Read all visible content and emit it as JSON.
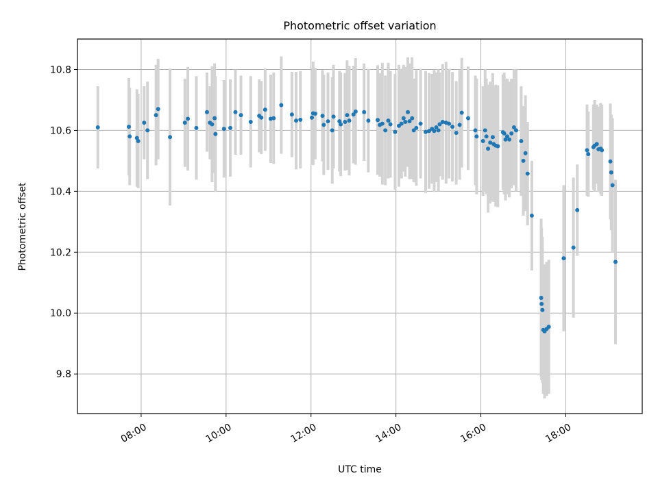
{
  "chart_data": {
    "type": "scatter",
    "title": "Photometric offset variation",
    "xlabel": "UTC time",
    "ylabel": "Photometric offset",
    "x_unit": "hours UTC",
    "xlim": [
      6.5,
      19.8
    ],
    "ylim": [
      9.67,
      10.9
    ],
    "x_ticks": [
      8,
      10,
      12,
      14,
      16,
      18
    ],
    "x_tick_labels": [
      "08:00",
      "10:00",
      "12:00",
      "14:00",
      "16:00",
      "18:00"
    ],
    "y_ticks": [
      9.8,
      10.0,
      10.2,
      10.4,
      10.6,
      10.8
    ],
    "y_tick_labels": [
      "9.8",
      "10.0",
      "10.2",
      "10.4",
      "10.6",
      "10.8"
    ],
    "grid": true,
    "colors": {
      "points": "#1f77b4",
      "errorbars": "#d3d3d3",
      "grid": "#b0b0b0"
    },
    "series": [
      {
        "x": [
          6.98,
          7.71,
          7.73,
          7.9,
          7.93,
          8.07,
          8.15,
          8.35,
          8.4,
          8.68,
          9.03,
          9.1,
          9.3,
          9.55,
          9.62,
          9.67,
          9.73,
          9.75,
          9.95,
          10.1,
          10.22,
          10.35,
          10.58,
          10.78,
          10.83,
          10.92,
          11.05,
          11.12,
          11.3,
          11.55,
          11.65,
          11.75,
          12.02,
          12.05,
          12.1,
          12.27,
          12.3,
          12.4,
          12.5,
          12.53,
          12.67,
          12.7,
          12.8,
          12.85,
          12.9,
          13.0,
          13.05,
          13.25,
          13.35,
          13.57,
          13.62,
          13.68,
          13.75,
          13.82,
          13.87,
          13.98,
          14.07,
          14.13,
          14.18,
          14.22,
          14.28,
          14.32,
          14.38,
          14.42,
          14.48,
          14.58,
          14.7,
          14.78,
          14.85,
          14.9,
          14.95,
          15.0,
          15.03,
          15.1,
          15.18,
          15.25,
          15.33,
          15.42,
          15.5,
          15.55,
          15.7,
          15.87,
          15.9,
          16.05,
          16.1,
          16.13,
          16.17,
          16.22,
          16.28,
          16.3,
          16.35,
          16.4,
          16.52,
          16.55,
          16.58,
          16.62,
          16.67,
          16.72,
          16.78,
          16.83,
          16.95,
          17.0,
          17.05,
          17.1,
          17.2,
          17.42,
          17.43,
          17.45,
          17.47,
          17.5,
          17.55,
          17.6,
          17.95,
          18.18,
          18.27,
          18.5,
          18.53,
          18.65,
          18.68,
          18.73,
          18.77,
          18.82,
          18.85,
          19.05,
          19.07,
          19.1,
          19.17
        ],
        "y": [
          10.61,
          10.612,
          10.58,
          10.575,
          10.565,
          10.625,
          10.6,
          10.65,
          10.67,
          10.578,
          10.625,
          10.638,
          10.608,
          10.66,
          10.625,
          10.62,
          10.64,
          10.588,
          10.605,
          10.608,
          10.66,
          10.65,
          10.628,
          10.648,
          10.642,
          10.668,
          10.638,
          10.64,
          10.683,
          10.652,
          10.632,
          10.635,
          10.642,
          10.656,
          10.655,
          10.648,
          10.618,
          10.63,
          10.6,
          10.645,
          10.63,
          10.62,
          10.628,
          10.65,
          10.632,
          10.652,
          10.662,
          10.66,
          10.632,
          10.634,
          10.618,
          10.622,
          10.6,
          10.632,
          10.62,
          10.595,
          10.615,
          10.622,
          10.64,
          10.628,
          10.66,
          10.63,
          10.64,
          10.6,
          10.608,
          10.622,
          10.595,
          10.598,
          10.605,
          10.598,
          10.61,
          10.6,
          10.62,
          10.628,
          10.625,
          10.622,
          10.612,
          10.592,
          10.618,
          10.658,
          10.64,
          10.6,
          10.58,
          10.565,
          10.6,
          10.58,
          10.54,
          10.56,
          10.578,
          10.555,
          10.55,
          10.548,
          10.594,
          10.59,
          10.57,
          10.58,
          10.57,
          10.59,
          10.61,
          10.6,
          10.565,
          10.5,
          10.525,
          10.458,
          10.32,
          10.05,
          10.03,
          10.01,
          9.945,
          9.94,
          9.948,
          9.955,
          10.18,
          10.215,
          10.338,
          10.535,
          10.522,
          10.545,
          10.55,
          10.555,
          10.538,
          10.54,
          10.535,
          10.498,
          10.462,
          10.42,
          10.168
        ],
        "err": [
          0.135,
          0.16,
          0.16,
          0.16,
          0.155,
          0.12,
          0.16,
          0.165,
          0.165,
          0.225,
          0.145,
          0.17,
          0.17,
          0.13,
          0.12,
          0.19,
          0.18,
          0.19,
          0.16,
          0.16,
          0.14,
          0.13,
          0.15,
          0.12,
          0.12,
          0.135,
          0.145,
          0.15,
          0.16,
          0.14,
          0.16,
          0.16,
          0.155,
          0.17,
          0.15,
          0.15,
          0.165,
          0.16,
          0.175,
          0.17,
          0.165,
          0.17,
          0.16,
          0.18,
          0.18,
          0.16,
          0.175,
          0.16,
          0.17,
          0.18,
          0.17,
          0.2,
          0.18,
          0.19,
          0.175,
          0.19,
          0.2,
          0.18,
          0.175,
          0.18,
          0.18,
          0.19,
          0.2,
          0.17,
          0.19,
          0.18,
          0.2,
          0.19,
          0.18,
          0.2,
          0.18,
          0.2,
          0.17,
          0.19,
          0.2,
          0.18,
          0.18,
          0.17,
          0.18,
          0.18,
          0.17,
          0.18,
          0.19,
          0.18,
          0.2,
          0.19,
          0.21,
          0.2,
          0.21,
          0.19,
          0.2,
          0.2,
          0.19,
          0.2,
          0.2,
          0.19,
          0.19,
          0.18,
          0.19,
          0.2,
          0.18,
          0.18,
          0.19,
          0.17,
          0.18,
          0.26,
          0.25,
          0.24,
          0.21,
          0.22,
          0.22,
          0.22,
          0.24,
          0.23,
          0.15,
          0.15,
          0.14,
          0.14,
          0.15,
          0.13,
          0.14,
          0.15,
          0.15,
          0.19,
          0.19,
          0.22,
          0.27
        ]
      }
    ]
  }
}
